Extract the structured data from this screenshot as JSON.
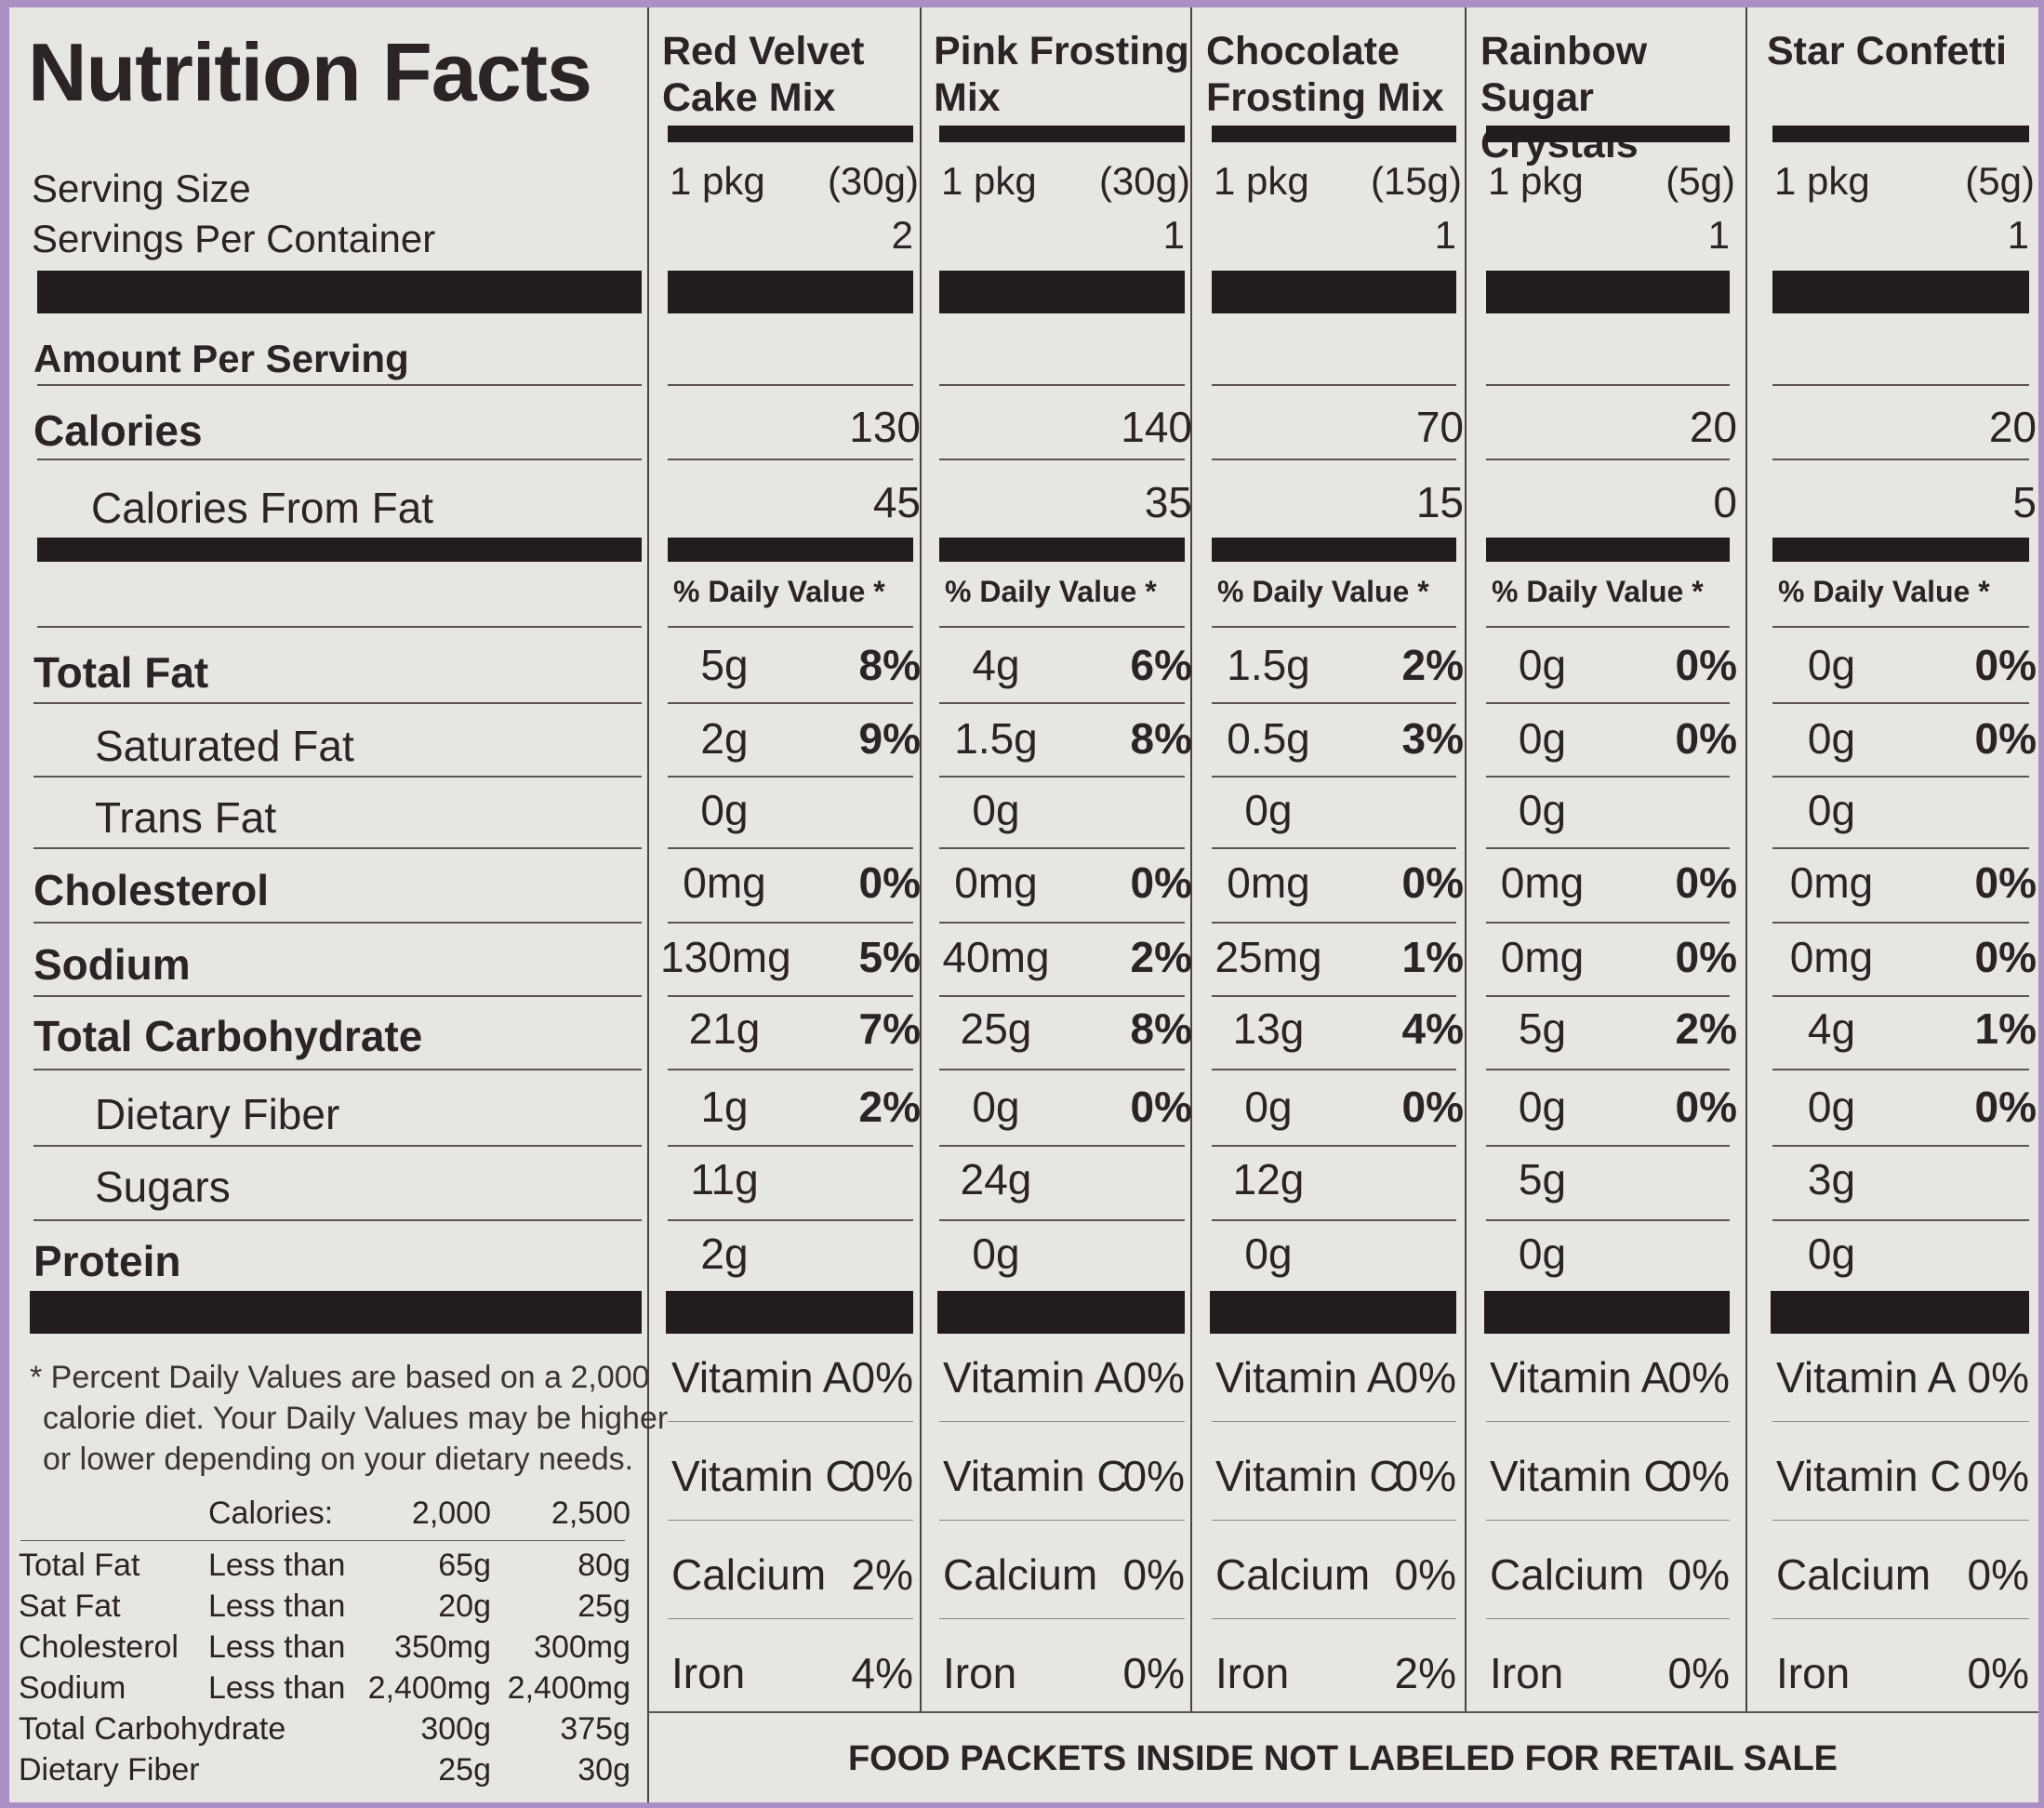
{
  "title": "Nutrition Facts",
  "left": {
    "serving_size": "Serving Size",
    "servings_per_container": "Servings Per Container",
    "amount_per_serving": "Amount Per Serving",
    "calories": "Calories",
    "calories_from_fat": "Calories From Fat",
    "rows": {
      "total_fat": "Total Fat",
      "saturated_fat": "Saturated Fat",
      "trans_fat": "Trans Fat",
      "cholesterol": "Cholesterol",
      "sodium": "Sodium",
      "total_carbohydrate": "Total Carbohydrate",
      "dietary_fiber": "Dietary Fiber",
      "sugars": "Sugars",
      "protein": "Protein"
    },
    "footnote": [
      "* Percent Daily Values are based on a 2,000",
      "calorie diet. Your Daily Values may be higher",
      "or lower depending on your dietary needs."
    ],
    "dv_table": {
      "header": [
        "Calories:",
        "2,000",
        "2,500"
      ],
      "rows": [
        [
          "Total Fat",
          "Less than",
          "65g",
          "80g"
        ],
        [
          "Sat Fat",
          "Less than",
          "20g",
          "25g"
        ],
        [
          "Cholesterol",
          "Less than",
          "350mg",
          "300mg"
        ],
        [
          "Sodium",
          "Less than",
          "2,400mg",
          "2,400mg"
        ],
        [
          "Total Carbohydrate",
          "",
          "300g",
          "375g"
        ],
        [
          "Dietary Fiber",
          "",
          "25g",
          "30g"
        ]
      ]
    }
  },
  "dv_header": "% Daily Value *",
  "products": [
    {
      "name": "Red Velvet Cake Mix",
      "pkg": "1 pkg",
      "grams": "(30g)",
      "servings": "2",
      "calories": "130",
      "cal_fat": "45",
      "total_fat": "5g",
      "total_fat_dv": "8%",
      "sat_fat": "2g",
      "sat_fat_dv": "9%",
      "trans_fat": "0g",
      "chol": "0mg",
      "chol_dv": "0%",
      "sodium": "130mg",
      "sodium_dv": "5%",
      "carb": "21g",
      "carb_dv": "7%",
      "fiber": "1g",
      "fiber_dv": "2%",
      "sugars": "11g",
      "protein": "2g",
      "vitamins": [
        [
          "Vitamin A",
          "0%"
        ],
        [
          "Vitamin C",
          "0%"
        ],
        [
          "Calcium",
          "2%"
        ],
        [
          "Iron",
          "4%"
        ]
      ]
    },
    {
      "name": "Pink Frosting Mix",
      "pkg": "1 pkg",
      "grams": "(30g)",
      "servings": "1",
      "calories": "140",
      "cal_fat": "35",
      "total_fat": "4g",
      "total_fat_dv": "6%",
      "sat_fat": "1.5g",
      "sat_fat_dv": "8%",
      "trans_fat": "0g",
      "chol": "0mg",
      "chol_dv": "0%",
      "sodium": "40mg",
      "sodium_dv": "2%",
      "carb": "25g",
      "carb_dv": "8%",
      "fiber": "0g",
      "fiber_dv": "0%",
      "sugars": "24g",
      "protein": "0g",
      "vitamins": [
        [
          "Vitamin A",
          "0%"
        ],
        [
          "Vitamin C",
          "0%"
        ],
        [
          "Calcium",
          "0%"
        ],
        [
          "Iron",
          "0%"
        ]
      ]
    },
    {
      "name": "Chocolate Frosting Mix",
      "pkg": "1 pkg",
      "grams": "(15g)",
      "servings": "1",
      "calories": "70",
      "cal_fat": "15",
      "total_fat": "1.5g",
      "total_fat_dv": "2%",
      "sat_fat": "0.5g",
      "sat_fat_dv": "3%",
      "trans_fat": "0g",
      "chol": "0mg",
      "chol_dv": "0%",
      "sodium": "25mg",
      "sodium_dv": "1%",
      "carb": "13g",
      "carb_dv": "4%",
      "fiber": "0g",
      "fiber_dv": "0%",
      "sugars": "12g",
      "protein": "0g",
      "vitamins": [
        [
          "Vitamin A",
          "0%"
        ],
        [
          "Vitamin C",
          "0%"
        ],
        [
          "Calcium",
          "0%"
        ],
        [
          "Iron",
          "2%"
        ]
      ]
    },
    {
      "name": "Rainbow Sugar Crystals",
      "pkg": "1 pkg",
      "grams": "(5g)",
      "servings": "1",
      "calories": "20",
      "cal_fat": "0",
      "total_fat": "0g",
      "total_fat_dv": "0%",
      "sat_fat": "0g",
      "sat_fat_dv": "0%",
      "trans_fat": "0g",
      "chol": "0mg",
      "chol_dv": "0%",
      "sodium": "0mg",
      "sodium_dv": "0%",
      "carb": "5g",
      "carb_dv": "2%",
      "fiber": "0g",
      "fiber_dv": "0%",
      "sugars": "5g",
      "protein": "0g",
      "vitamins": [
        [
          "Vitamin A",
          "0%"
        ],
        [
          "Vitamin C",
          "0%"
        ],
        [
          "Calcium",
          "0%"
        ],
        [
          "Iron",
          "0%"
        ]
      ]
    },
    {
      "name": "Star Confetti",
      "pkg": "1 pkg",
      "grams": "(5g)",
      "servings": "1",
      "calories": "20",
      "cal_fat": "5",
      "total_fat": "0g",
      "total_fat_dv": "0%",
      "sat_fat": "0g",
      "sat_fat_dv": "0%",
      "trans_fat": "0g",
      "chol": "0mg",
      "chol_dv": "0%",
      "sodium": "0mg",
      "sodium_dv": "0%",
      "carb": "4g",
      "carb_dv": "1%",
      "fiber": "0g",
      "fiber_dv": "0%",
      "sugars": "3g",
      "protein": "0g",
      "vitamins": [
        [
          "Vitamin A",
          "0%"
        ],
        [
          "Vitamin C",
          "0%"
        ],
        [
          "Calcium",
          "0%"
        ],
        [
          "Iron",
          "0%"
        ]
      ]
    }
  ],
  "bottom_note": "FOOD PACKETS INSIDE NOT LABELED FOR RETAIL SALE"
}
